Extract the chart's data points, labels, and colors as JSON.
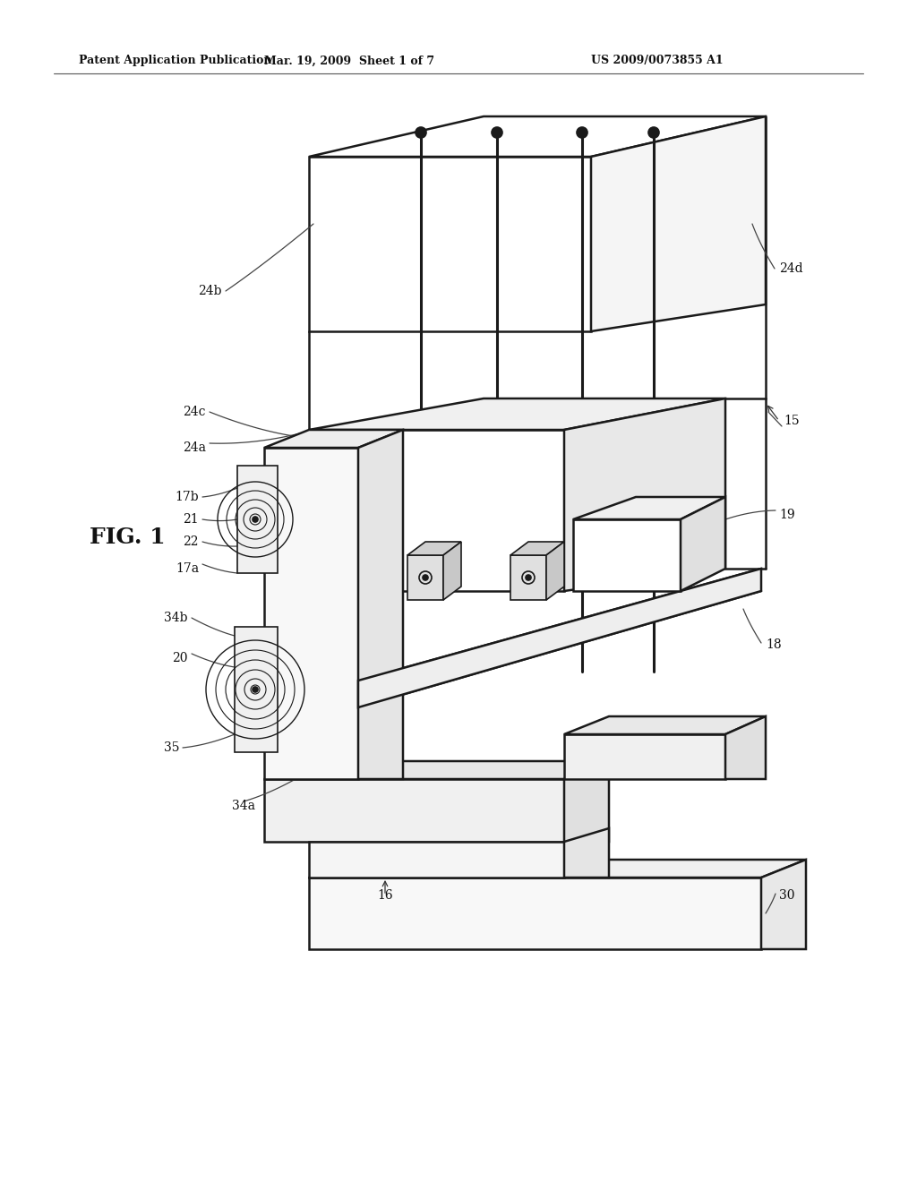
{
  "background_color": "#ffffff",
  "line_color": "#1a1a1a",
  "header_left": "Patent Application Publication",
  "header_center": "Mar. 19, 2009  Sheet 1 of 7",
  "header_right": "US 2009/0073855 A1",
  "fig_label": "FIG. 1"
}
